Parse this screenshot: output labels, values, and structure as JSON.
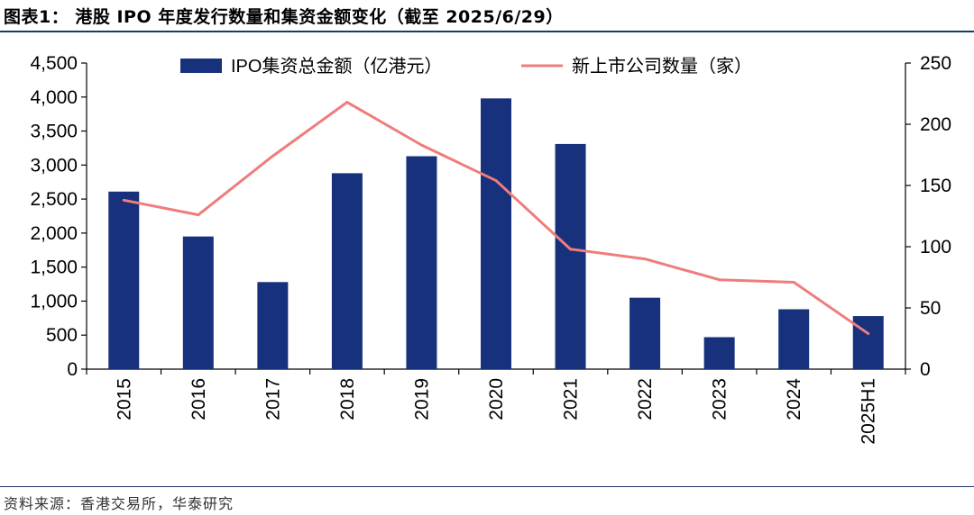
{
  "title": "图表1： 港股 IPO 年度发行数量和集资金额变化（截至 2025/6/29）",
  "source": "资料来源：香港交易所，华泰研究",
  "colors": {
    "bar": "#17317c",
    "line": "#f07c7c",
    "axis": "#000000"
  },
  "chart_data": {
    "type": "bar+line",
    "categories": [
      "2015",
      "2016",
      "2017",
      "2018",
      "2019",
      "2020",
      "2021",
      "2022",
      "2023",
      "2024",
      "2025H1"
    ],
    "series": [
      {
        "name": "IPO集资总金额（亿港元）",
        "type": "bar",
        "axis": "left",
        "values": [
          2610,
          1950,
          1280,
          2880,
          3130,
          3980,
          3310,
          1050,
          470,
          880,
          780
        ]
      },
      {
        "name": "新上市公司数量（家）",
        "type": "line",
        "axis": "right",
        "values": [
          138,
          126,
          174,
          218,
          183,
          154,
          98,
          90,
          73,
          71,
          29
        ]
      }
    ],
    "y_left": {
      "min": 0,
      "max": 4500,
      "ticks": [
        0,
        500,
        1000,
        1500,
        2000,
        2500,
        3000,
        3500,
        4000,
        4500
      ],
      "tick_labels": [
        "0",
        "500",
        "1,000",
        "1,500",
        "2,000",
        "2,500",
        "3,000",
        "3,500",
        "4,000",
        "4,500"
      ]
    },
    "y_right": {
      "min": 0,
      "max": 250,
      "ticks": [
        0,
        50,
        100,
        150,
        200,
        250
      ],
      "tick_labels": [
        "0",
        "50",
        "100",
        "150",
        "200",
        "250"
      ]
    },
    "legend": [
      "IPO集资总金额（亿港元）",
      "新上市公司数量（家）"
    ],
    "legend_position": "top"
  }
}
